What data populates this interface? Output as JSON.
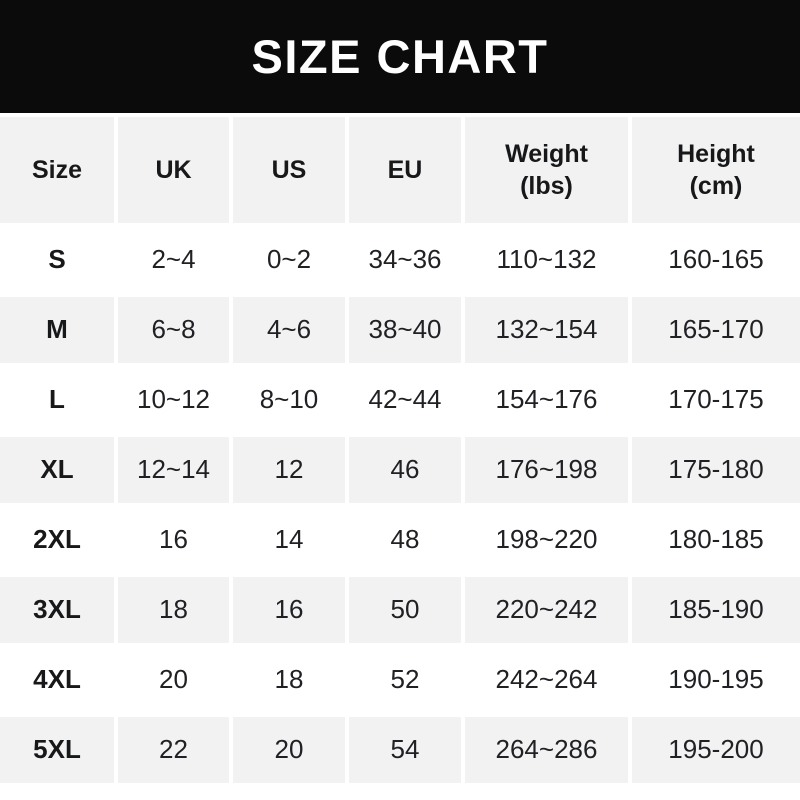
{
  "title_bar": {
    "title": "SIZE CHART"
  },
  "table": {
    "headers": {
      "size": "Size",
      "uk": "UK",
      "us": "US",
      "eu": "EU",
      "weight_line1": "Weight",
      "weight_line2": "(lbs)",
      "height_line1": "Height",
      "height_line2": "(cm)"
    },
    "rows": [
      {
        "size": "S",
        "uk": "2~4",
        "us": "0~2",
        "eu": "34~36",
        "weight": "110~132",
        "height": "160-165"
      },
      {
        "size": "M",
        "uk": "6~8",
        "us": "4~6",
        "eu": "38~40",
        "weight": "132~154",
        "height": "165-170"
      },
      {
        "size": "L",
        "uk": "10~12",
        "us": "8~10",
        "eu": "42~44",
        "weight": "154~176",
        "height": "170-175"
      },
      {
        "size": "XL",
        "uk": "12~14",
        "us": "12",
        "eu": "46",
        "weight": "176~198",
        "height": "175-180"
      },
      {
        "size": "2XL",
        "uk": "16",
        "us": "14",
        "eu": "48",
        "weight": "198~220",
        "height": "180-185"
      },
      {
        "size": "3XL",
        "uk": "18",
        "us": "16",
        "eu": "50",
        "weight": "220~242",
        "height": "185-190"
      },
      {
        "size": "4XL",
        "uk": "20",
        "us": "18",
        "eu": "52",
        "weight": "242~264",
        "height": "190-195"
      },
      {
        "size": "5XL",
        "uk": "22",
        "us": "20",
        "eu": "54",
        "weight": "264~286",
        "height": "195-200"
      }
    ]
  },
  "colors": {
    "title_bar_bg": "#0b0b0b",
    "title_text": "#ffffff",
    "alt_row_bg": "#f2f2f3",
    "cell_text": "#202124"
  },
  "chart_data": {
    "type": "table",
    "title": "SIZE CHART",
    "columns": [
      "Size",
      "UK",
      "US",
      "EU",
      "Weight (lbs)",
      "Height (cm)"
    ],
    "rows": [
      [
        "S",
        "2~4",
        "0~2",
        "34~36",
        "110~132",
        "160-165"
      ],
      [
        "M",
        "6~8",
        "4~6",
        "38~40",
        "132~154",
        "165-170"
      ],
      [
        "L",
        "10~12",
        "8~10",
        "42~44",
        "154~176",
        "170-175"
      ],
      [
        "XL",
        "12~14",
        "12",
        "46",
        "176~198",
        "175-180"
      ],
      [
        "2XL",
        "16",
        "14",
        "48",
        "198~220",
        "180-185"
      ],
      [
        "3XL",
        "18",
        "16",
        "50",
        "220~242",
        "185-190"
      ],
      [
        "4XL",
        "20",
        "18",
        "52",
        "242~264",
        "190-195"
      ],
      [
        "5XL",
        "22",
        "20",
        "54",
        "264~286",
        "195-200"
      ]
    ]
  }
}
